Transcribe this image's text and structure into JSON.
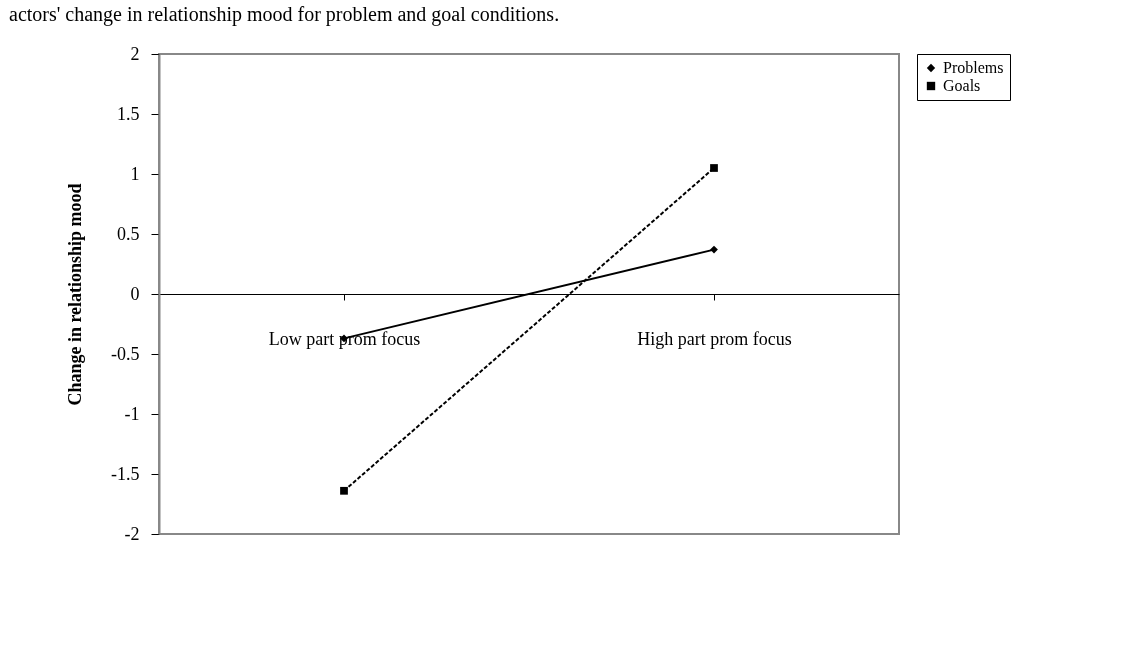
{
  "chart_data": {
    "type": "line",
    "title": "actors' change in relationship mood for problem and goal conditions.",
    "ylabel": "Change in relationship mood",
    "categories": [
      "Low part prom focus",
      "High part prom focus"
    ],
    "series": [
      {
        "name": "Problems",
        "color": "#000000",
        "values": [
          -0.37,
          0.37
        ],
        "marker": "diamond",
        "line_style": "solid"
      },
      {
        "name": "Goals",
        "color": "#000000",
        "values": [
          -1.64,
          1.05
        ],
        "marker": "square",
        "line_style": "dashed"
      }
    ],
    "ylim": [
      -2,
      2
    ],
    "yticks": [
      -2,
      -1.5,
      -1,
      -0.5,
      0,
      0.5,
      1,
      1.5,
      2
    ],
    "grid": false,
    "legend": "right"
  }
}
